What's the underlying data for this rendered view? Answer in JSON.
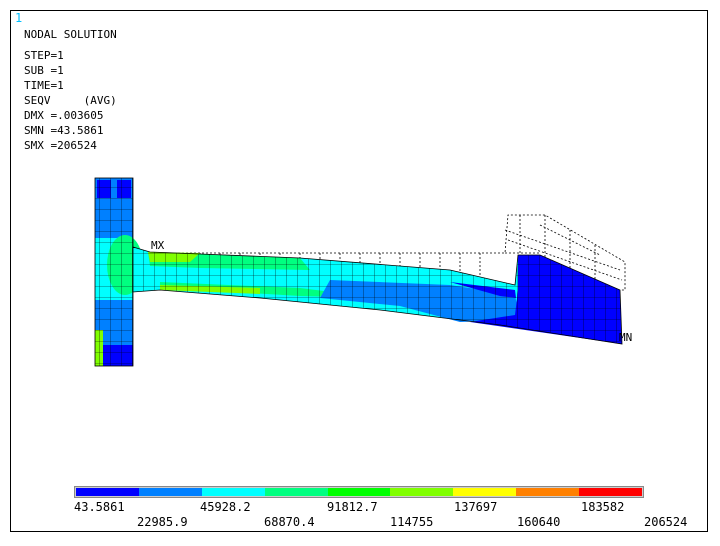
{
  "window_number": "1",
  "info_lines": {
    "title": "NODAL SOLUTION",
    "step": "STEP=1",
    "sub": "SUB =1",
    "time": "TIME=1",
    "seqv": "SEQV     (AVG)",
    "dmx": "DMX =.003605",
    "smn": "SMN =43.5861",
    "smx": "SMX =206524"
  },
  "markers": {
    "max": "MX",
    "min": "MN"
  },
  "legend": {
    "colors": [
      "#0000ff",
      "#0080ff",
      "#00ffff",
      "#00ff80",
      "#00ff00",
      "#80ff00",
      "#ffff00",
      "#ff8000",
      "#ff0000"
    ],
    "labels_top": [
      "43.5861",
      "45928.2",
      "91812.7",
      "137697",
      "183582"
    ],
    "labels_bottom": [
      "22985.9",
      "68870.4",
      "114755",
      "160640",
      "206524"
    ]
  }
}
